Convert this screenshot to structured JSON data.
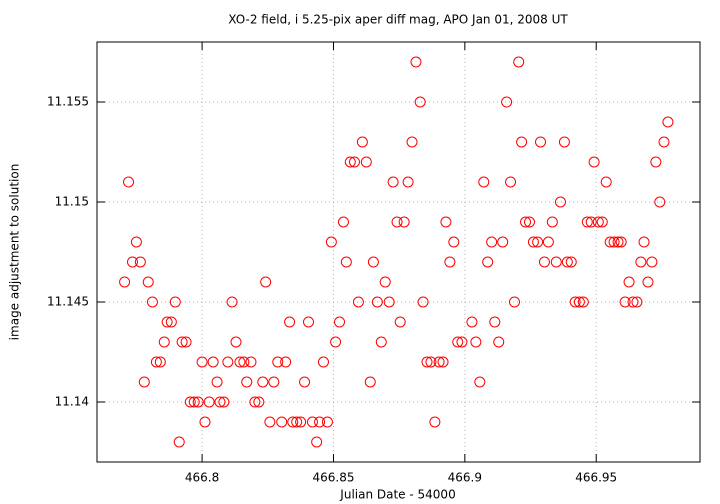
{
  "chart_data": {
    "type": "scatter",
    "title": "XO-2 field, i 5.25-pix aper diff mag, APO Jan 01, 2008 UT",
    "x_label": "Julian Date - 54000",
    "y_label": "image adjustment to solution",
    "xlim": [
      466.76,
      466.9895
    ],
    "ylim": [
      11.137,
      11.158
    ],
    "xticks": [
      466.8,
      466.85,
      466.9,
      466.95
    ],
    "yticks": [
      11.14,
      11.145,
      11.15,
      11.155
    ],
    "grid": true,
    "series": [
      {
        "color": "#ff0000",
        "x": [
          466.7705,
          466.772,
          466.7735,
          466.775,
          466.7765,
          466.778,
          466.7795,
          466.7811,
          466.7826,
          466.7841,
          466.7856,
          466.7867,
          466.7883,
          466.7898,
          466.7913,
          466.7924,
          466.7939,
          466.7955,
          466.797,
          466.7985,
          466.8,
          466.8011,
          466.8027,
          466.8042,
          466.8057,
          466.8068,
          466.8083,
          466.8098,
          466.8114,
          466.8129,
          466.8144,
          466.8159,
          466.817,
          466.8186,
          466.8201,
          466.8216,
          466.8231,
          466.8242,
          466.8258,
          466.8273,
          466.8288,
          466.8303,
          466.8318,
          466.8333,
          466.8345,
          466.836,
          466.8375,
          466.839,
          466.8405,
          466.842,
          466.8436,
          466.8447,
          466.8462,
          466.8477,
          466.8492,
          466.8508,
          466.8523,
          466.8538,
          466.8549,
          466.8564,
          466.858,
          466.8595,
          466.861,
          466.8625,
          466.864,
          466.8652,
          466.8667,
          466.8682,
          466.8697,
          466.8712,
          466.8727,
          466.8742,
          466.8754,
          466.8769,
          466.8784,
          466.8799,
          466.8814,
          466.883,
          466.8841,
          466.8856,
          466.8871,
          466.8886,
          466.8902,
          466.8917,
          466.8928,
          466.8943,
          466.8958,
          466.8973,
          466.8989,
          466.9027,
          466.9042,
          466.9057,
          466.9072,
          466.9087,
          466.9102,
          466.9114,
          466.9129,
          466.9144,
          466.9159,
          466.9174,
          466.9189,
          466.9205,
          466.9216,
          466.9231,
          466.9246,
          466.9261,
          466.9277,
          466.9288,
          466.9303,
          466.9318,
          466.9333,
          466.9348,
          466.9364,
          466.9379,
          466.939,
          466.9405,
          466.942,
          466.9436,
          466.9451,
          466.9466,
          466.9481,
          466.9492,
          466.9508,
          466.9523,
          466.9538,
          466.9553,
          466.9568,
          466.9583,
          466.9595,
          466.961,
          466.9625,
          466.964,
          466.9655,
          466.967,
          466.9682,
          466.9697,
          466.9712,
          466.9727,
          466.9742,
          466.9758,
          466.9773
        ],
        "values": [
          11.146,
          11.151,
          11.147,
          11.148,
          11.147,
          11.141,
          11.146,
          11.145,
          11.142,
          11.142,
          11.143,
          11.144,
          11.144,
          11.145,
          11.138,
          11.143,
          11.143,
          11.14,
          11.14,
          11.14,
          11.142,
          11.139,
          11.14,
          11.142,
          11.141,
          11.14,
          11.14,
          11.142,
          11.145,
          11.143,
          11.142,
          11.142,
          11.141,
          11.142,
          11.14,
          11.14,
          11.141,
          11.146,
          11.139,
          11.141,
          11.142,
          11.139,
          11.142,
          11.144,
          11.139,
          11.139,
          11.139,
          11.141,
          11.144,
          11.139,
          11.138,
          11.139,
          11.142,
          11.139,
          11.148,
          11.143,
          11.144,
          11.149,
          11.147,
          11.152,
          11.152,
          11.145,
          11.153,
          11.152,
          11.141,
          11.147,
          11.145,
          11.143,
          11.146,
          11.145,
          11.151,
          11.149,
          11.144,
          11.149,
          11.151,
          11.153,
          11.157,
          11.155,
          11.145,
          11.142,
          11.142,
          11.139,
          11.142,
          11.142,
          11.149,
          11.147,
          11.148,
          11.143,
          11.143,
          11.144,
          11.143,
          11.141,
          11.151,
          11.147,
          11.148,
          11.144,
          11.143,
          11.148,
          11.155,
          11.151,
          11.145,
          11.157,
          11.153,
          11.149,
          11.149,
          11.148,
          11.148,
          11.153,
          11.147,
          11.148,
          11.149,
          11.147,
          11.15,
          11.153,
          11.147,
          11.147,
          11.145,
          11.145,
          11.145,
          11.149,
          11.149,
          11.152,
          11.149,
          11.149,
          11.151,
          11.148,
          11.148,
          11.148,
          11.148,
          11.145,
          11.146,
          11.145,
          11.145,
          11.147,
          11.148,
          11.146,
          11.147,
          11.152,
          11.15,
          11.153,
          11.154
        ]
      }
    ]
  }
}
